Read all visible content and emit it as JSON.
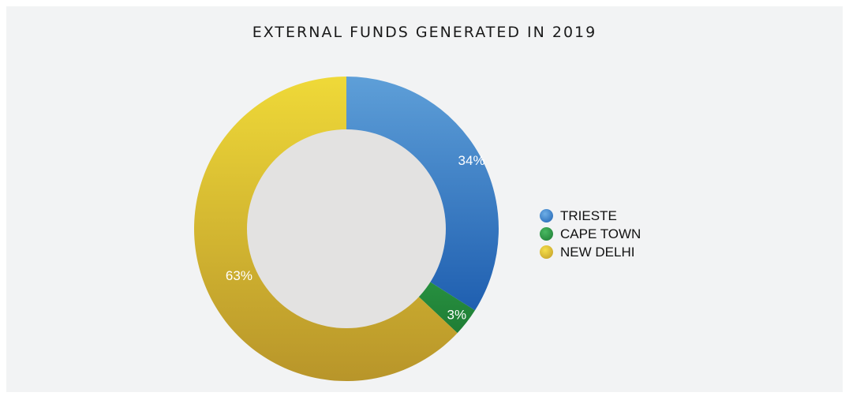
{
  "chart_data": {
    "type": "pie",
    "title": "EXTERNAL FUNDS GENERATED IN 2019",
    "categories": [
      "TRIESTE",
      "CAPE TOWN",
      "NEW DELHI"
    ],
    "values": [
      34,
      3,
      63
    ],
    "labels": [
      "34%",
      "3%",
      "63%"
    ],
    "colors": [
      "#3a86d0",
      "#2e9a46",
      "#e6c833"
    ],
    "legend_position": "right",
    "donut": true,
    "hole_color": "#e3e2e1"
  }
}
